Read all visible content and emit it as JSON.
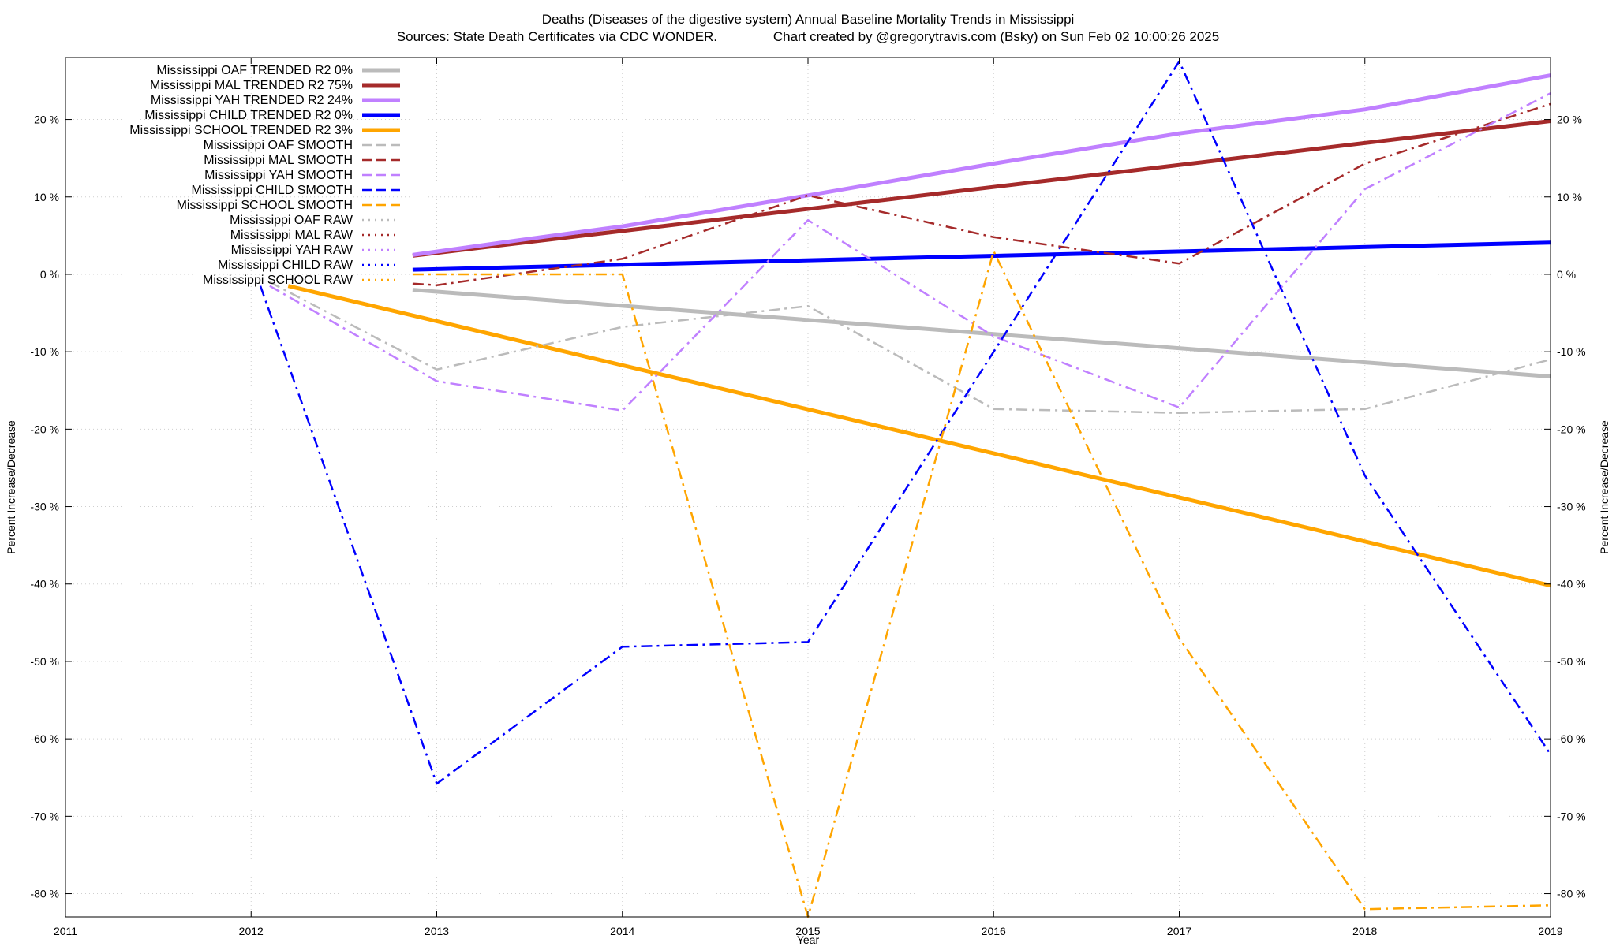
{
  "chart_data": {
    "type": "line",
    "title": "Deaths (Diseases of the digestive system)  Annual Baseline Mortality Trends in Mississippi",
    "subtitle": "Sources: State Death Certificates via CDC WONDER.               Chart created by @gregorytravis.com (Bsky) on Sun Feb 02 10:00:26 2025",
    "xlabel": "Year",
    "ylabel": "Percent Increase/Decrease",
    "xlim": [
      2011,
      2019
    ],
    "ylim": [
      -83,
      28
    ],
    "x_ticks": [
      2011,
      2012,
      2013,
      2014,
      2015,
      2016,
      2017,
      2018,
      2019
    ],
    "x_tick_labels": [
      "2011",
      "2012",
      "2013",
      "2014",
      "2015",
      "2016",
      "2017",
      "2018",
      "2019"
    ],
    "y_ticks": [
      -80,
      -70,
      -60,
      -50,
      -40,
      -30,
      -20,
      -10,
      0,
      10,
      20
    ],
    "y_tick_labels_left": [
      "-80 %",
      "-70 %",
      "-60 %",
      "-50 %",
      "-40 %",
      "-30 %",
      "-20 %",
      "-10 %",
      "0 %",
      "10 %",
      "20 %"
    ],
    "y_tick_labels_right": [
      "-80 %",
      "-70 %",
      "-60 %",
      "-50 %",
      "-40 %",
      "-30 %",
      "-20 %",
      "-10 %",
      "0 %",
      "10 %",
      "20 %"
    ],
    "grid": true,
    "legend_position": "top-left",
    "series": [
      {
        "name": "Mississippi OAF TRENDED R2   0%",
        "style": "trend",
        "color": "#bbbbbb",
        "x": [
          2012.87,
          2019
        ],
        "y": [
          -2.0,
          -13.2
        ]
      },
      {
        "name": "Mississippi MAL TRENDED R2  75%",
        "style": "trend",
        "color": "#a52a2a",
        "x": [
          2012.87,
          2019
        ],
        "y": [
          2.4,
          19.8
        ]
      },
      {
        "name": "Mississippi YAH TRENDED R2  24%",
        "style": "trend",
        "color": "#c080ff",
        "x": [
          2012.87,
          2013.5,
          2014,
          2015,
          2016,
          2017,
          2018,
          2019
        ],
        "y": [
          2.5,
          4.6,
          6.2,
          10.2,
          14.3,
          18.2,
          21.3,
          25.7
        ]
      },
      {
        "name": "Mississippi CHILD TRENDED R2   0%",
        "style": "trend",
        "color": "#0000ff",
        "x": [
          2012.87,
          2019
        ],
        "y": [
          0.6,
          4.1
        ]
      },
      {
        "name": "Mississippi SCHOOL TRENDED R2   3%",
        "style": "trend",
        "color": "#ffa500",
        "x": [
          2012.2,
          2019
        ],
        "y": [
          -1.5,
          -40.2
        ]
      },
      {
        "name": "Mississippi OAF SMOOTH",
        "style": "smooth",
        "color": "#bbbbbb",
        "x": [
          2012.1,
          2013,
          2014,
          2015,
          2016,
          2017,
          2018,
          2019
        ],
        "y": [
          -1.0,
          -12.3,
          -6.8,
          -4.1,
          -17.4,
          -17.9,
          -17.4,
          -11.0
        ]
      },
      {
        "name": "Mississippi MAL SMOOTH",
        "style": "smooth",
        "color": "#a52a2a",
        "x": [
          2012.87,
          2013,
          2014,
          2015,
          2016,
          2017,
          2018,
          2019
        ],
        "y": [
          -1.2,
          -1.4,
          2.0,
          10.2,
          4.8,
          1.4,
          14.3,
          22.0
        ]
      },
      {
        "name": "Mississippi YAH SMOOTH",
        "style": "smooth",
        "color": "#c080ff",
        "x": [
          2012.1,
          2013,
          2014,
          2015,
          2016,
          2017,
          2018,
          2019
        ],
        "y": [
          -1.5,
          -13.8,
          -17.6,
          7.0,
          -8.0,
          -17.2,
          11.0,
          23.4
        ]
      },
      {
        "name": "Mississippi CHILD SMOOTH",
        "style": "smooth",
        "color": "#0000ff",
        "x": [
          2012.05,
          2013,
          2014,
          2015,
          2016,
          2017,
          2018,
          2019
        ],
        "y": [
          -1.5,
          -65.8,
          -48.1,
          -47.5,
          -10.0,
          27.5,
          -26.0,
          -62.0
        ]
      },
      {
        "name": "Mississippi SCHOOL SMOOTH",
        "style": "smooth",
        "color": "#ffa500",
        "x": [
          2012.87,
          2013,
          2014,
          2015,
          2016,
          2017,
          2018,
          2019
        ],
        "y": [
          0.0,
          0.0,
          0.0,
          -83.0,
          3.0,
          -47.0,
          -82.0,
          -81.5
        ]
      },
      {
        "name": "Mississippi OAF RAW",
        "style": "raw",
        "color": "#bbbbbb",
        "x": [],
        "y": []
      },
      {
        "name": "Mississippi MAL RAW",
        "style": "raw",
        "color": "#a52a2a",
        "x": [],
        "y": []
      },
      {
        "name": "Mississippi YAH RAW",
        "style": "raw",
        "color": "#c080ff",
        "x": [],
        "y": []
      },
      {
        "name": "Mississippi CHILD RAW",
        "style": "raw",
        "color": "#0000ff",
        "x": [],
        "y": []
      },
      {
        "name": "Mississippi SCHOOL RAW",
        "style": "raw",
        "color": "#ffa500",
        "x": [],
        "y": []
      }
    ]
  }
}
